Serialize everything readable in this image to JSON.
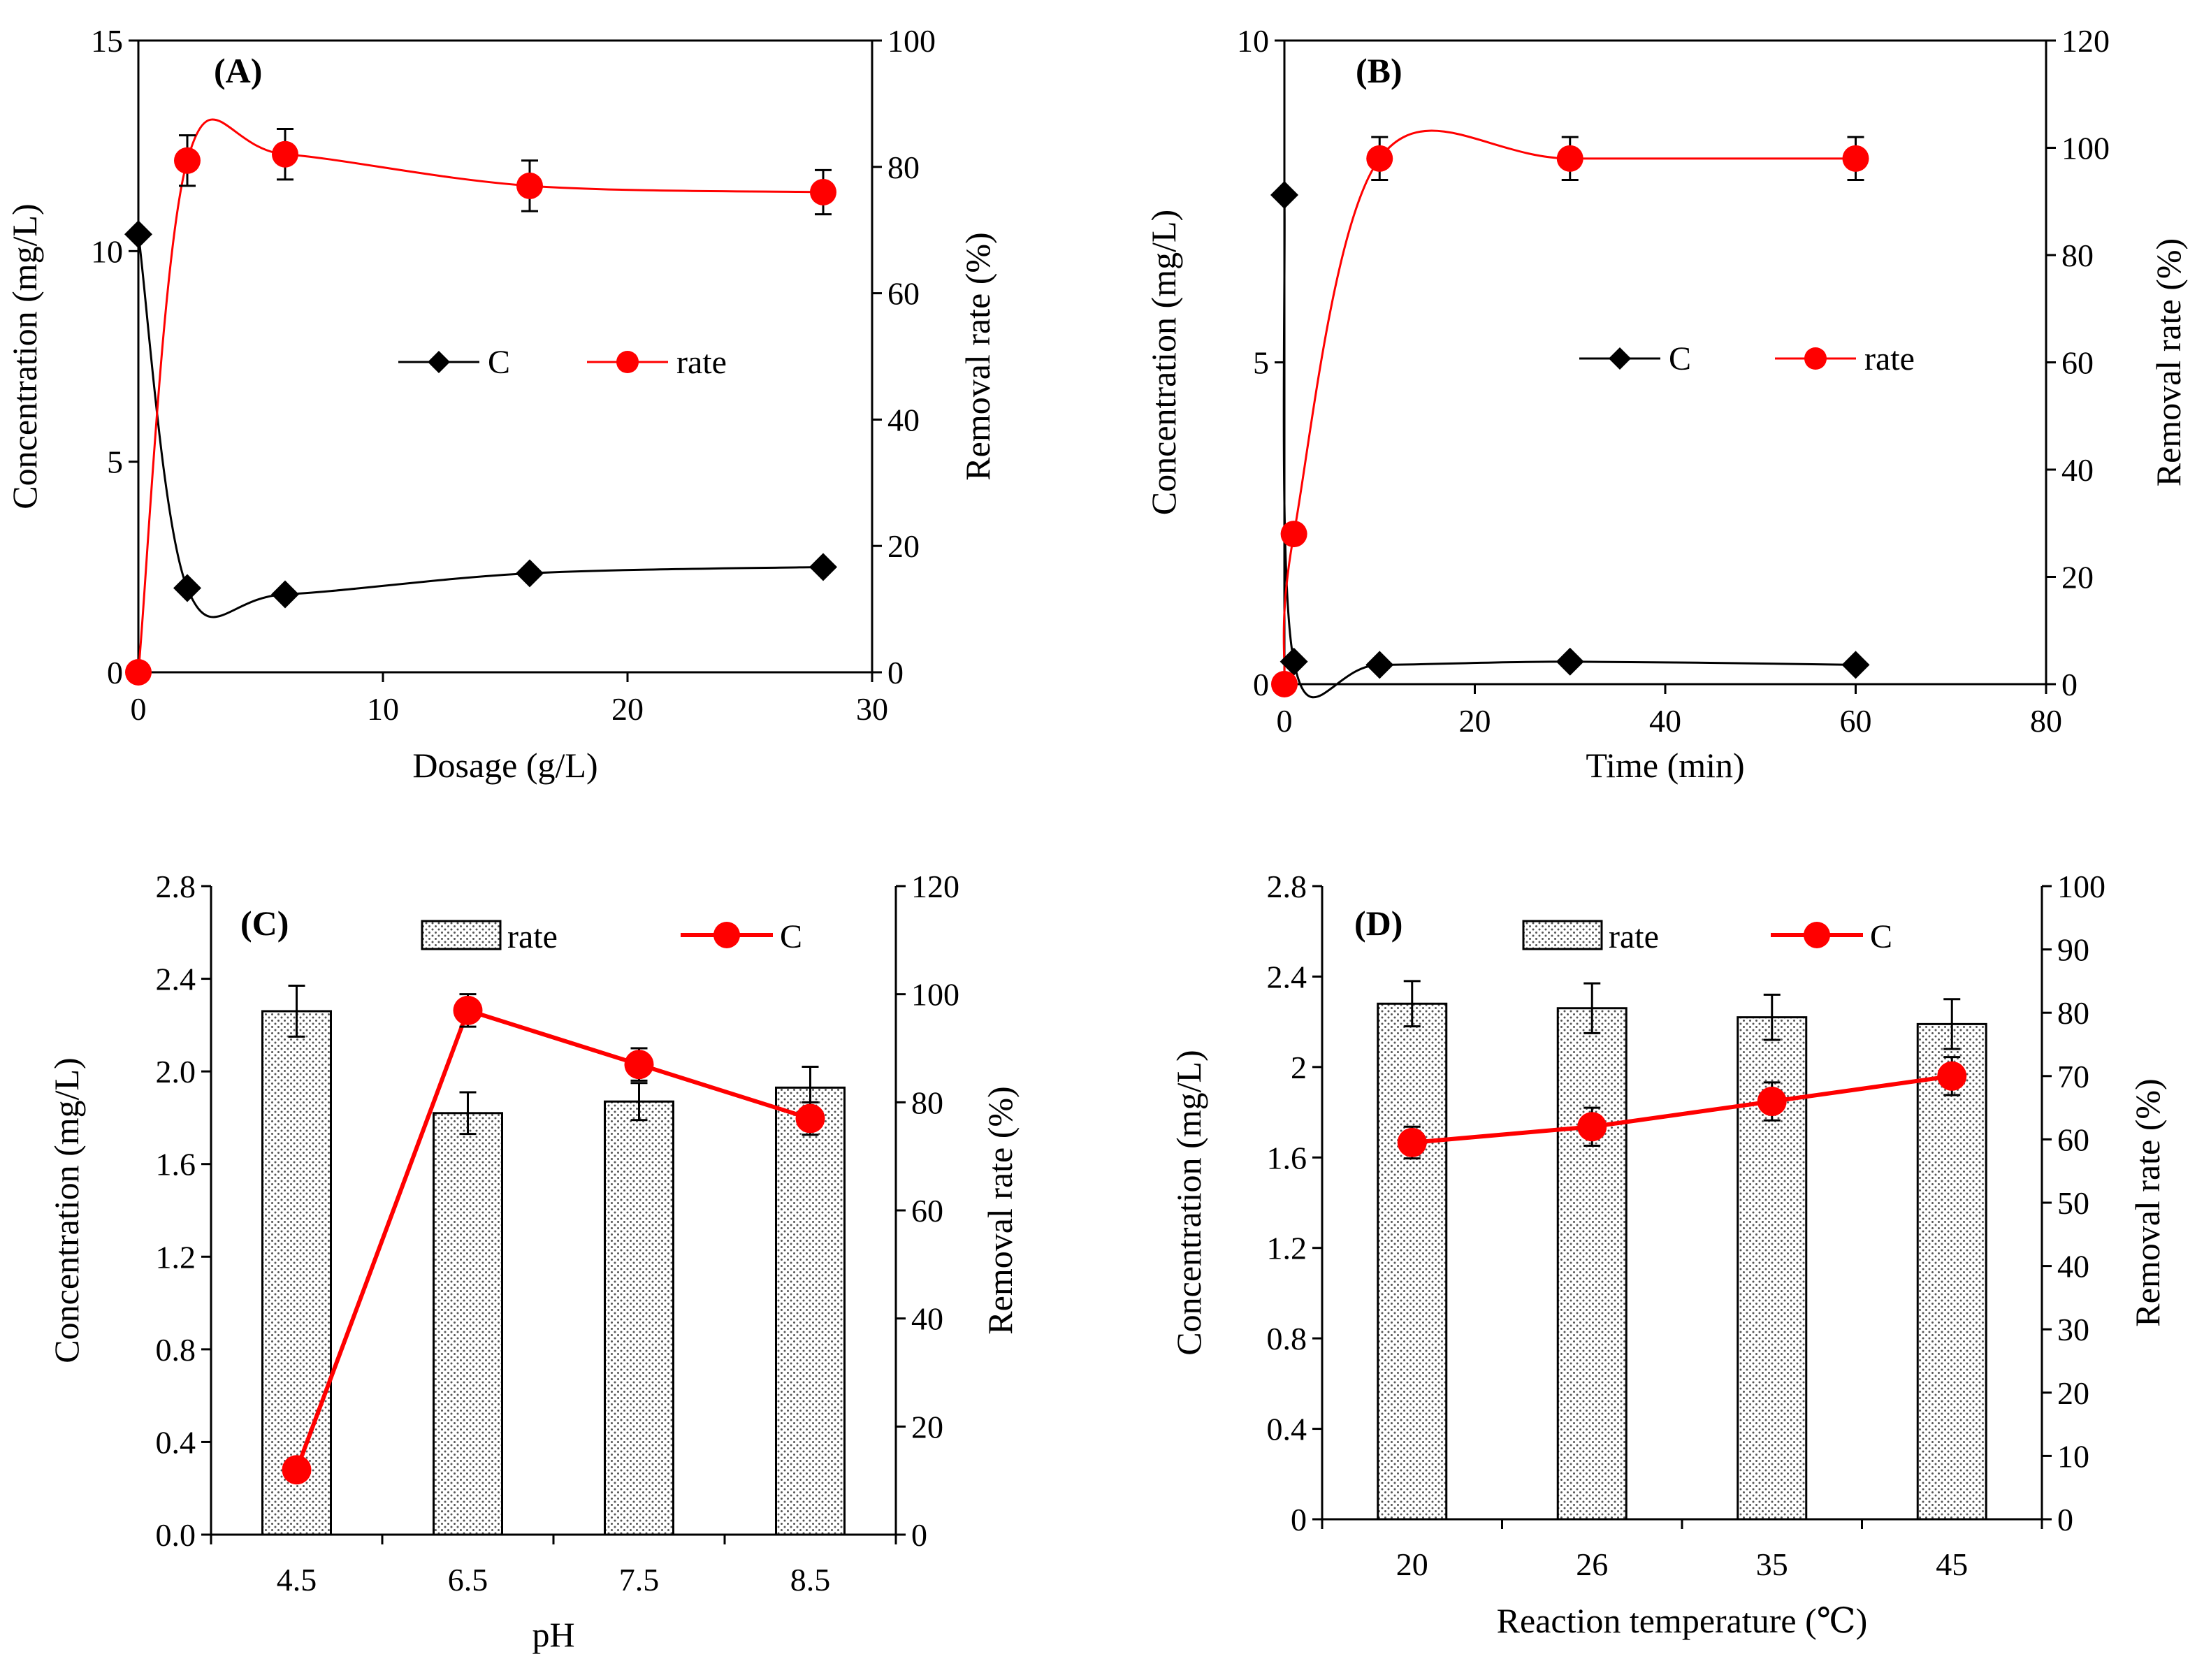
{
  "colors": {
    "red": "#ff0000",
    "black": "#000000"
  },
  "chart_data": [
    {
      "panel": "(A)",
      "type": "line",
      "xlabel": "Dosage (g/L)",
      "ylabel": "Concentration (mg/L)",
      "y2label": "Removal rate (%)",
      "xlim": [
        0,
        30
      ],
      "xticks": [
        0,
        10,
        20,
        30
      ],
      "ylim": [
        0,
        15
      ],
      "yticks": [
        0,
        5,
        10,
        15
      ],
      "y2lim": [
        0,
        100
      ],
      "y2ticks": [
        0,
        20,
        40,
        60,
        80,
        100
      ],
      "legend": [
        "C",
        "rate"
      ],
      "legend_position": "center",
      "x": [
        0,
        2,
        6,
        16,
        28
      ],
      "series": [
        {
          "name": "C",
          "axis": "left",
          "marker": "diamond",
          "color": "#000000",
          "values": [
            10.4,
            2.0,
            1.85,
            2.35,
            2.5
          ]
        },
        {
          "name": "rate",
          "axis": "right",
          "marker": "circle",
          "color": "#ff0000",
          "values": [
            0,
            81,
            82,
            77,
            76
          ],
          "errors": [
            0,
            4,
            4,
            4,
            3.5
          ]
        }
      ]
    },
    {
      "panel": "(B)",
      "type": "line",
      "xlabel": "Time (min)",
      "ylabel": "Concentration (mg/L)",
      "y2label": "Removal rate (%)",
      "xlim": [
        0,
        80
      ],
      "xticks": [
        0,
        20,
        40,
        60,
        80
      ],
      "ylim": [
        0,
        10
      ],
      "yticks": [
        0,
        5,
        10
      ],
      "y2lim": [
        0,
        120
      ],
      "y2ticks": [
        0,
        20,
        40,
        60,
        80,
        100,
        120
      ],
      "legend": [
        "C",
        "rate"
      ],
      "legend_position": "center",
      "x": [
        0,
        1,
        10,
        30,
        60
      ],
      "series": [
        {
          "name": "C",
          "axis": "left",
          "marker": "diamond",
          "color": "#000000",
          "values": [
            7.6,
            0.35,
            0.3,
            0.35,
            0.3
          ]
        },
        {
          "name": "rate",
          "axis": "right",
          "marker": "circle",
          "color": "#ff0000",
          "values": [
            0,
            28,
            98,
            98,
            98
          ],
          "errors": [
            0,
            0,
            4,
            4,
            4
          ]
        }
      ]
    },
    {
      "panel": "(C)",
      "type": "bar",
      "xlabel": "pH",
      "ylabel": "Concentration (mg/L)",
      "y2label": "Removal rate (%)",
      "categories": [
        "4.5",
        "6.5",
        "7.5",
        "8.5"
      ],
      "ylim": [
        0,
        2.8
      ],
      "yticks": [
        "0.0",
        "0.4",
        "0.8",
        "1.2",
        "1.6",
        "2.0",
        "2.4",
        "2.8"
      ],
      "y2lim": [
        0,
        120
      ],
      "y2ticks": [
        0,
        20,
        40,
        60,
        80,
        100,
        120
      ],
      "legend": [
        "rate",
        "C"
      ],
      "legend_position": "top-center",
      "series": [
        {
          "name": "rate",
          "kind": "bar",
          "axis": "left",
          "values": [
            2.26,
            1.82,
            1.87,
            1.93
          ],
          "errors": [
            0.11,
            0.09,
            0.08,
            0.09
          ]
        },
        {
          "name": "C",
          "kind": "line",
          "axis": "right",
          "color": "#ff0000",
          "values": [
            12,
            97,
            87,
            77
          ],
          "errors": [
            0,
            3,
            3,
            3
          ]
        }
      ]
    },
    {
      "panel": "(D)",
      "type": "bar",
      "xlabel": "Reaction temperature (℃)",
      "ylabel": "Concentration (mg/L)",
      "y2label": "Removal rate (%)",
      "categories": [
        "20",
        "26",
        "35",
        "45"
      ],
      "ylim": [
        0,
        2.8
      ],
      "yticks": [
        "0",
        "0.4",
        "0.8",
        "1.2",
        "1.6",
        "2",
        "2.4",
        "2.8"
      ],
      "y2lim": [
        0,
        100
      ],
      "y2ticks": [
        0,
        10,
        20,
        30,
        40,
        50,
        60,
        70,
        80,
        90,
        100
      ],
      "legend": [
        "rate",
        "C"
      ],
      "legend_position": "top-center",
      "series": [
        {
          "name": "rate",
          "kind": "bar",
          "axis": "left",
          "values": [
            2.28,
            2.26,
            2.22,
            2.19
          ],
          "errors": [
            0.1,
            0.11,
            0.1,
            0.11
          ]
        },
        {
          "name": "C",
          "kind": "line",
          "axis": "right",
          "color": "#ff0000",
          "values": [
            59.5,
            62,
            66,
            70
          ],
          "errors": [
            2.5,
            3,
            3,
            3
          ]
        }
      ]
    }
  ]
}
